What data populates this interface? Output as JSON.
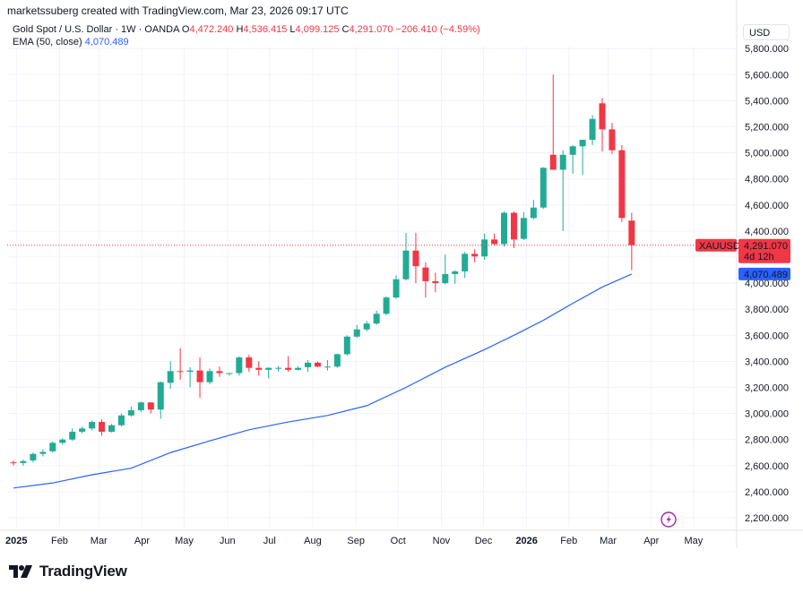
{
  "header": {
    "creator": "marketssuberg created with TradingView.com, Mar 23, 2026 09:17 UTC",
    "instrument": "Gold Spot / U.S. Dollar · 1W · OANDA",
    "ohlc": [
      {
        "label": "O",
        "value": "4,472.240"
      },
      {
        "label": "H",
        "value": "4,536.415"
      },
      {
        "label": "L",
        "value": "4,099.125"
      },
      {
        "label": "C",
        "value": "4,291.070"
      }
    ],
    "change": "−206.410 (−4.59%)",
    "ema_label": "EMA (50, close)",
    "ema_value": "4,070.489",
    "currency": "USD"
  },
  "price_tags": {
    "symbol": "XAUUSD",
    "last_price": "4,291.070",
    "countdown": "4d 12h",
    "ema_price": "4,070.489"
  },
  "footer": {
    "brand": "TradingView"
  },
  "colors": {
    "up": "#26a69a",
    "up_body": "#22ab94",
    "down": "#f23645",
    "ema": "#2962ff",
    "grid": "#f0f3fa",
    "last_price_line": "#f23645"
  },
  "chart_data": {
    "type": "candlestick",
    "timeframe": "1W",
    "y_range": [
      2100,
      5900
    ],
    "y_ticks": [
      "2,200.000",
      "2,400.000",
      "2,600.000",
      "2,800.000",
      "3,000.000",
      "3,200.000",
      "3,400.000",
      "3,600.000",
      "3,800.000",
      "4,000.000",
      "4,200.000",
      "4,400.000",
      "4,600.000",
      "4,800.000",
      "5,000.000",
      "5,200.000",
      "5,400.000",
      "5,600.000",
      "5,800.000"
    ],
    "x_labels": [
      {
        "label": "2025",
        "week": 0.3,
        "bold": true
      },
      {
        "label": "Feb",
        "week": 4.7
      },
      {
        "label": "Mar",
        "week": 8.7
      },
      {
        "label": "Apr",
        "week": 13.1
      },
      {
        "label": "May",
        "week": 17.4
      },
      {
        "label": "Jun",
        "week": 21.8
      },
      {
        "label": "Jul",
        "week": 26.1
      },
      {
        "label": "Aug",
        "week": 30.5
      },
      {
        "label": "Sep",
        "week": 34.9
      },
      {
        "label": "Oct",
        "week": 39.2
      },
      {
        "label": "Nov",
        "week": 43.6
      },
      {
        "label": "Dec",
        "week": 47.9
      },
      {
        "label": "2026",
        "week": 52.3,
        "bold": true
      },
      {
        "label": "Feb",
        "week": 56.6
      },
      {
        "label": "Mar",
        "week": 60.6
      },
      {
        "label": "Apr",
        "week": 65.0
      },
      {
        "label": "May",
        "week": 69.3
      }
    ],
    "total_weeks": 72,
    "candles": [
      {
        "o": 2625,
        "h": 2640,
        "l": 2600,
        "c": 2620
      },
      {
        "o": 2620,
        "h": 2645,
        "l": 2600,
        "c": 2635
      },
      {
        "o": 2640,
        "h": 2700,
        "l": 2625,
        "c": 2690
      },
      {
        "o": 2690,
        "h": 2725,
        "l": 2670,
        "c": 2705
      },
      {
        "o": 2710,
        "h": 2785,
        "l": 2700,
        "c": 2775
      },
      {
        "o": 2775,
        "h": 2810,
        "l": 2760,
        "c": 2800
      },
      {
        "o": 2800,
        "h": 2885,
        "l": 2790,
        "c": 2860
      },
      {
        "o": 2860,
        "h": 2900,
        "l": 2845,
        "c": 2885
      },
      {
        "o": 2885,
        "h": 2945,
        "l": 2870,
        "c": 2935
      },
      {
        "o": 2935,
        "h": 2955,
        "l": 2830,
        "c": 2860
      },
      {
        "o": 2860,
        "h": 2920,
        "l": 2855,
        "c": 2910
      },
      {
        "o": 2910,
        "h": 3000,
        "l": 2900,
        "c": 2985
      },
      {
        "o": 2985,
        "h": 3055,
        "l": 2975,
        "c": 3025
      },
      {
        "o": 3025,
        "h": 3090,
        "l": 3010,
        "c": 3085
      },
      {
        "o": 3085,
        "h": 3065,
        "l": 3000,
        "c": 3030
      },
      {
        "o": 3030,
        "h": 3245,
        "l": 2960,
        "c": 3240
      },
      {
        "o": 3235,
        "h": 3400,
        "l": 3190,
        "c": 3325
      },
      {
        "o": 3325,
        "h": 3500,
        "l": 3260,
        "c": 3320
      },
      {
        "o": 3320,
        "h": 3355,
        "l": 3200,
        "c": 3330
      },
      {
        "o": 3330,
        "h": 3430,
        "l": 3120,
        "c": 3240
      },
      {
        "o": 3240,
        "h": 3345,
        "l": 3225,
        "c": 3325
      },
      {
        "o": 3325,
        "h": 3360,
        "l": 3280,
        "c": 3310
      },
      {
        "o": 3310,
        "h": 3310,
        "l": 3290,
        "c": 3310
      },
      {
        "o": 3310,
        "h": 3440,
        "l": 3290,
        "c": 3430
      },
      {
        "o": 3430,
        "h": 3450,
        "l": 3320,
        "c": 3350
      },
      {
        "o": 3350,
        "h": 3400,
        "l": 3290,
        "c": 3335
      },
      {
        "o": 3335,
        "h": 3355,
        "l": 3270,
        "c": 3350
      },
      {
        "o": 3350,
        "h": 3365,
        "l": 3320,
        "c": 3350
      },
      {
        "o": 3350,
        "h": 3440,
        "l": 3320,
        "c": 3335
      },
      {
        "o": 3335,
        "h": 3360,
        "l": 3330,
        "c": 3350
      },
      {
        "o": 3355,
        "h": 3410,
        "l": 3320,
        "c": 3390
      },
      {
        "o": 3390,
        "h": 3400,
        "l": 3355,
        "c": 3360
      },
      {
        "o": 3360,
        "h": 3410,
        "l": 3330,
        "c": 3360
      },
      {
        "o": 3360,
        "h": 3460,
        "l": 3350,
        "c": 3455
      },
      {
        "o": 3455,
        "h": 3600,
        "l": 3445,
        "c": 3590
      },
      {
        "o": 3590,
        "h": 3680,
        "l": 3580,
        "c": 3645
      },
      {
        "o": 3645,
        "h": 3710,
        "l": 3630,
        "c": 3690
      },
      {
        "o": 3690,
        "h": 3790,
        "l": 3680,
        "c": 3765
      },
      {
        "o": 3765,
        "h": 3900,
        "l": 3755,
        "c": 3890
      },
      {
        "o": 3890,
        "h": 4060,
        "l": 3880,
        "c": 4030
      },
      {
        "o": 4030,
        "h": 4385,
        "l": 4020,
        "c": 4250
      },
      {
        "o": 4250,
        "h": 4385,
        "l": 4000,
        "c": 4130
      },
      {
        "o": 4120,
        "h": 4160,
        "l": 3890,
        "c": 4015
      },
      {
        "o": 4015,
        "h": 4080,
        "l": 3930,
        "c": 4000
      },
      {
        "o": 4000,
        "h": 4220,
        "l": 3990,
        "c": 4070
      },
      {
        "o": 4070,
        "h": 4100,
        "l": 3995,
        "c": 4090
      },
      {
        "o": 4090,
        "h": 4240,
        "l": 4040,
        "c": 4225
      },
      {
        "o": 4225,
        "h": 4260,
        "l": 4160,
        "c": 4205
      },
      {
        "o": 4205,
        "h": 4380,
        "l": 4180,
        "c": 4335
      },
      {
        "o": 4335,
        "h": 4380,
        "l": 4290,
        "c": 4300
      },
      {
        "o": 4300,
        "h": 4550,
        "l": 4280,
        "c": 4540
      },
      {
        "o": 4540,
        "h": 4550,
        "l": 4270,
        "c": 4335
      },
      {
        "o": 4340,
        "h": 4545,
        "l": 4330,
        "c": 4500
      },
      {
        "o": 4500,
        "h": 4640,
        "l": 4490,
        "c": 4580
      },
      {
        "o": 4580,
        "h": 4890,
        "l": 4570,
        "c": 4885
      },
      {
        "o": 4985,
        "h": 5600,
        "l": 4890,
        "c": 4870
      },
      {
        "o": 4870,
        "h": 5020,
        "l": 4400,
        "c": 4985
      },
      {
        "o": 4985,
        "h": 5060,
        "l": 4840,
        "c": 5050
      },
      {
        "o": 5050,
        "h": 5100,
        "l": 4830,
        "c": 5100
      },
      {
        "o": 5100,
        "h": 5290,
        "l": 5060,
        "c": 5260
      },
      {
        "o": 5380,
        "h": 5420,
        "l": 5010,
        "c": 5180
      },
      {
        "o": 5180,
        "h": 5230,
        "l": 4990,
        "c": 5020
      },
      {
        "o": 5020,
        "h": 5060,
        "l": 4470,
        "c": 4500
      },
      {
        "o": 4480,
        "h": 4540,
        "l": 4100,
        "c": 4291
      }
    ],
    "ema": [
      [
        0,
        2428
      ],
      [
        4,
        2467
      ],
      [
        8,
        2530
      ],
      [
        12,
        2580
      ],
      [
        16,
        2700
      ],
      [
        20,
        2790
      ],
      [
        24,
        2875
      ],
      [
        28,
        2935
      ],
      [
        32,
        2985
      ],
      [
        36,
        3060
      ],
      [
        40,
        3200
      ],
      [
        44,
        3355
      ],
      [
        48,
        3490
      ],
      [
        51,
        3600
      ],
      [
        54,
        3715
      ],
      [
        57,
        3845
      ],
      [
        60,
        3970
      ],
      [
        63,
        4070
      ]
    ]
  }
}
